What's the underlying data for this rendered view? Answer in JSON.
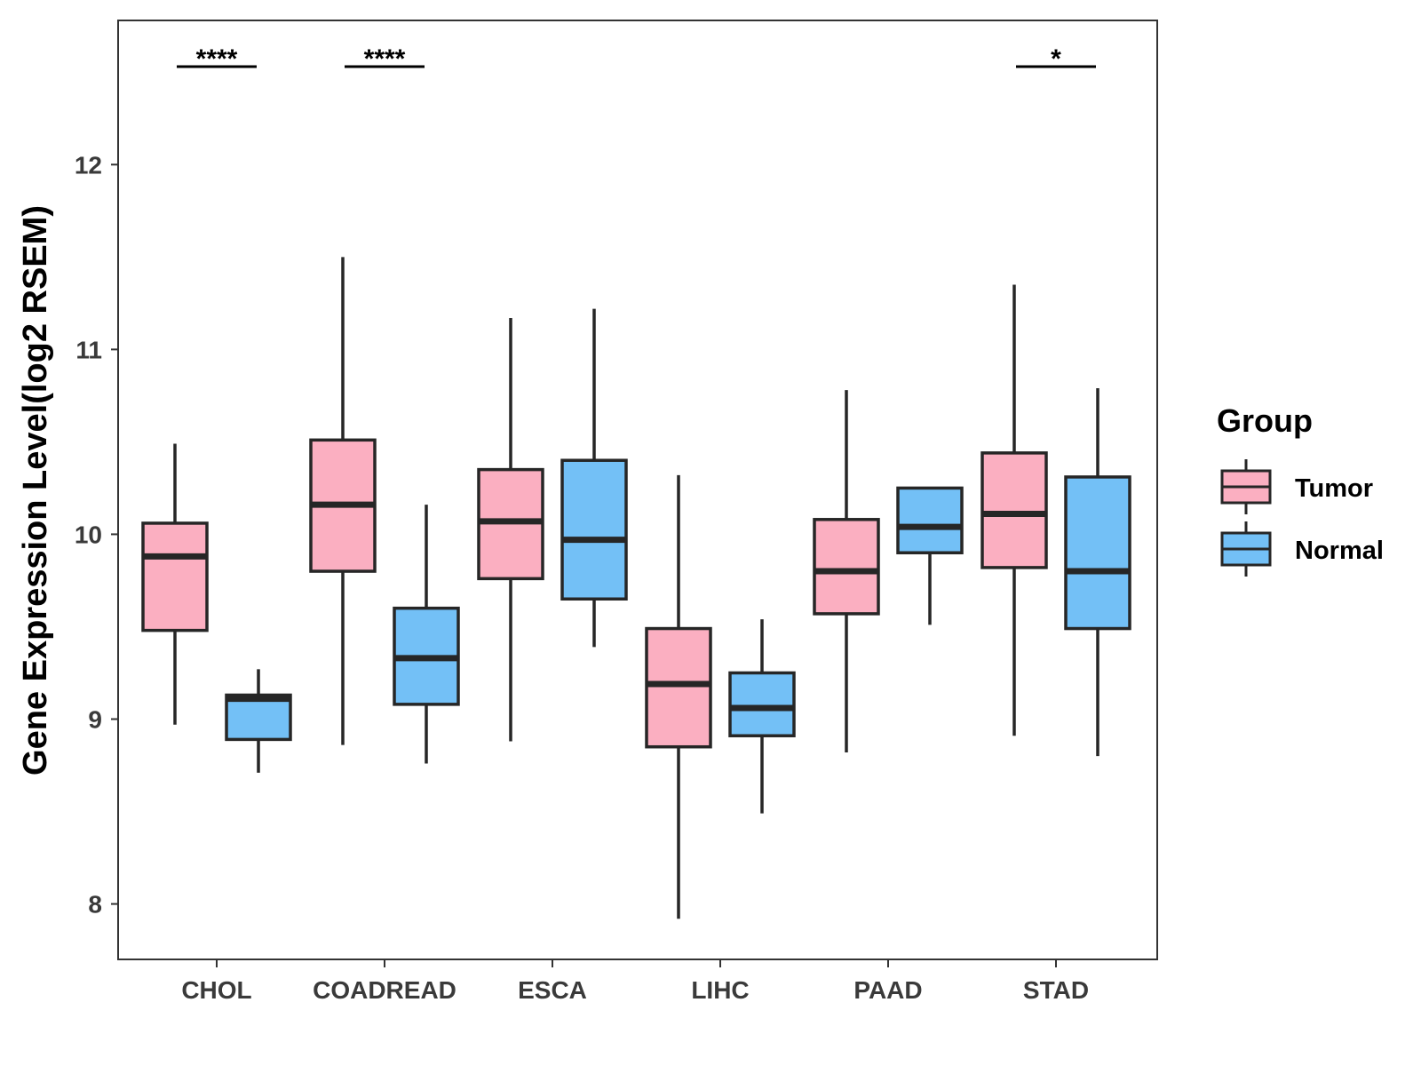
{
  "chart_data": {
    "type": "boxplot",
    "title": "",
    "xlabel": "",
    "ylabel": "Gene Expression Level(log2 RSEM)",
    "ylim": [
      7.7,
      12.78
    ],
    "yticks": [
      8,
      9,
      10,
      11,
      12
    ],
    "grid": false,
    "categories": [
      "CHOL",
      "COADREAD",
      "ESCA",
      "LIHC",
      "PAAD",
      "STAD"
    ],
    "legend": {
      "title": "Group",
      "position": "right",
      "entries": [
        {
          "name": "Tumor",
          "color": "#FBAFC1"
        },
        {
          "name": "Normal",
          "color": "#73C0F6"
        }
      ]
    },
    "series": [
      {
        "name": "Tumor",
        "color": "#FBAFC1",
        "boxes": [
          {
            "category": "CHOL",
            "min": 8.97,
            "q1": 9.48,
            "median": 9.88,
            "q3": 10.06,
            "max": 10.49
          },
          {
            "category": "COADREAD",
            "min": 8.86,
            "q1": 9.8,
            "median": 10.16,
            "q3": 10.51,
            "max": 11.5
          },
          {
            "category": "ESCA",
            "min": 8.88,
            "q1": 9.76,
            "median": 10.07,
            "q3": 10.35,
            "max": 11.17
          },
          {
            "category": "LIHC",
            "min": 7.92,
            "q1": 8.85,
            "median": 9.19,
            "q3": 9.49,
            "max": 10.32
          },
          {
            "category": "PAAD",
            "min": 8.82,
            "q1": 9.57,
            "median": 9.8,
            "q3": 10.08,
            "max": 10.78
          },
          {
            "category": "STAD",
            "min": 8.91,
            "q1": 9.82,
            "median": 10.11,
            "q3": 10.44,
            "max": 11.35
          }
        ]
      },
      {
        "name": "Normal",
        "color": "#73C0F6",
        "boxes": [
          {
            "category": "CHOL",
            "min": 8.71,
            "q1": 8.89,
            "median": 9.11,
            "q3": 9.13,
            "max": 9.27
          },
          {
            "category": "COADREAD",
            "min": 8.76,
            "q1": 9.08,
            "median": 9.33,
            "q3": 9.6,
            "max": 10.16
          },
          {
            "category": "ESCA",
            "min": 9.39,
            "q1": 9.65,
            "median": 9.97,
            "q3": 10.4,
            "max": 11.22
          },
          {
            "category": "LIHC",
            "min": 8.49,
            "q1": 8.91,
            "median": 9.06,
            "q3": 9.25,
            "max": 9.54
          },
          {
            "category": "PAAD",
            "min": 9.51,
            "q1": 9.9,
            "median": 10.04,
            "q3": 10.25,
            "max": 10.25
          },
          {
            "category": "STAD",
            "min": 8.8,
            "q1": 9.49,
            "median": 9.8,
            "q3": 10.31,
            "max": 10.79
          }
        ]
      }
    ],
    "annotations": [
      {
        "category": "CHOL",
        "label": "****"
      },
      {
        "category": "COADREAD",
        "label": "****"
      },
      {
        "category": "STAD",
        "label": "*"
      }
    ]
  }
}
